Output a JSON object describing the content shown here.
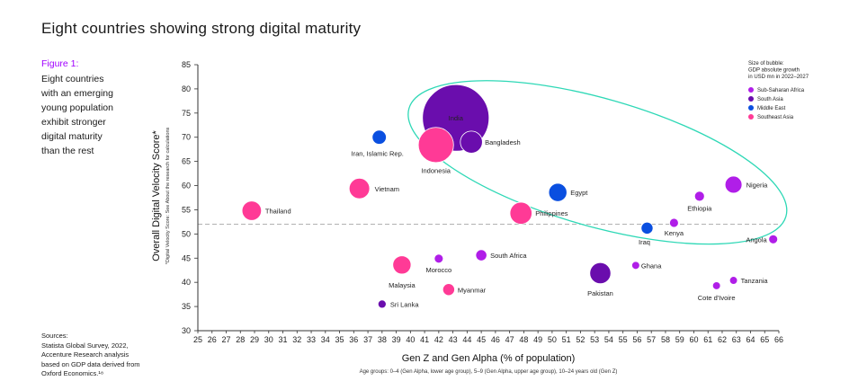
{
  "page": {
    "title": "Eight countries showing strong digital maturity",
    "figure_label": "Figure 1:",
    "caption_lines": [
      "Eight countries",
      "with an emerging",
      "young population",
      "exhibit stronger",
      "digital maturity",
      "than the rest"
    ],
    "sources_lines": [
      "Sources:",
      "Statista Global Survey, 2022,",
      "Accenture Research analysis",
      "based on GDP data derived from",
      "Oxford Economics.¹⁸"
    ]
  },
  "colors": {
    "Sub-Saharan Africa": "#b01ee8",
    "South Asia": "#6a0dad",
    "Middle East": "#0a4fe0",
    "Southeast Asia": "#ff3a96",
    "highlight": "#2ed8b6",
    "reference": "#999999",
    "axis": "#333333"
  },
  "chart_data": {
    "type": "scatter",
    "subtype": "bubble",
    "title": "Eight countries showing strong digital maturity",
    "xlabel": "Gen Z and Gen Alpha (% of population)",
    "xlabel_note": "Age groups: 0–4 (Gen Alpha, lower age group), 5–9 (Gen Alpha, upper age group), 10–24 years old (Gen Z)",
    "ylabel": "Overall Digital Velocity Score*",
    "ylabel_note": "*Digital Velocity Score: See About the research for calculations",
    "xlim": [
      25,
      66
    ],
    "ylim": [
      30,
      85
    ],
    "xticks": [
      25,
      26,
      27,
      28,
      29,
      30,
      31,
      32,
      33,
      34,
      35,
      36,
      37,
      38,
      39,
      40,
      41,
      42,
      43,
      44,
      45,
      46,
      47,
      48,
      49,
      50,
      51,
      52,
      53,
      54,
      55,
      56,
      57,
      58,
      59,
      60,
      61,
      62,
      63,
      64,
      65,
      66
    ],
    "yticks": [
      30,
      35,
      40,
      45,
      50,
      55,
      60,
      65,
      70,
      75,
      80,
      85
    ],
    "reference_line_y": 52,
    "legend": {
      "title_lines": [
        "Size of bubble:",
        "GDP absolute growth",
        "in USD mn in 2022–2027"
      ],
      "entries": [
        "Sub-Saharan Africa",
        "South Asia",
        "Middle East",
        "Southeast Asia"
      ],
      "position": "top-right"
    },
    "points": [
      {
        "name": "India",
        "x": 43.2,
        "y": 74.0,
        "region": "South Asia",
        "size": 100
      },
      {
        "name": "Indonesia",
        "x": 41.8,
        "y": 68.4,
        "region": "Southeast Asia",
        "size": 28
      },
      {
        "name": "Bangladesh",
        "x": 44.3,
        "y": 69.0,
        "region": "South Asia",
        "size": 11
      },
      {
        "name": "Iran, Islamic Rep.",
        "x": 37.8,
        "y": 70.0,
        "region": "Middle East",
        "size": 4.5
      },
      {
        "name": "Vietnam",
        "x": 36.4,
        "y": 59.4,
        "region": "Southeast Asia",
        "size": 9.5
      },
      {
        "name": "Thailand",
        "x": 28.8,
        "y": 54.8,
        "region": "Southeast Asia",
        "size": 8.5
      },
      {
        "name": "Egypt",
        "x": 50.4,
        "y": 58.6,
        "region": "Middle East",
        "size": 7.5
      },
      {
        "name": "Philippines",
        "x": 47.8,
        "y": 54.3,
        "region": "Southeast Asia",
        "size": 11
      },
      {
        "name": "Nigeria",
        "x": 62.8,
        "y": 60.2,
        "region": "Sub-Saharan Africa",
        "size": 6.5
      },
      {
        "name": "Ethiopia",
        "x": 60.4,
        "y": 57.8,
        "region": "Sub-Saharan Africa",
        "size": 2.2
      },
      {
        "name": "Iraq",
        "x": 56.7,
        "y": 51.2,
        "region": "Middle East",
        "size": 3.2
      },
      {
        "name": "Kenya",
        "x": 58.6,
        "y": 52.3,
        "region": "Sub-Saharan Africa",
        "size": 1.8
      },
      {
        "name": "Angola",
        "x": 65.6,
        "y": 48.9,
        "region": "Sub-Saharan Africa",
        "size": 1.8
      },
      {
        "name": "South Africa",
        "x": 45.0,
        "y": 45.6,
        "region": "Sub-Saharan Africa",
        "size": 2.8
      },
      {
        "name": "Morocco",
        "x": 42.0,
        "y": 44.9,
        "region": "Sub-Saharan Africa",
        "size": 1.8
      },
      {
        "name": "Malaysia",
        "x": 39.4,
        "y": 43.6,
        "region": "Southeast Asia",
        "size": 7.5
      },
      {
        "name": "Myanmar",
        "x": 42.7,
        "y": 38.5,
        "region": "Southeast Asia",
        "size": 3.2
      },
      {
        "name": "Sri Lanka",
        "x": 38.0,
        "y": 35.5,
        "region": "South Asia",
        "size": 1.5
      },
      {
        "name": "Pakistan",
        "x": 53.4,
        "y": 41.9,
        "region": "South Asia",
        "size": 10
      },
      {
        "name": "Ghana",
        "x": 55.9,
        "y": 43.5,
        "region": "Sub-Saharan Africa",
        "size": 1.4
      },
      {
        "name": "Tanzania",
        "x": 62.8,
        "y": 40.4,
        "region": "Sub-Saharan Africa",
        "size": 1.4
      },
      {
        "name": "Cote d'Ivoire",
        "x": 61.6,
        "y": 39.3,
        "region": "Sub-Saharan Africa",
        "size": 1.4
      }
    ]
  }
}
